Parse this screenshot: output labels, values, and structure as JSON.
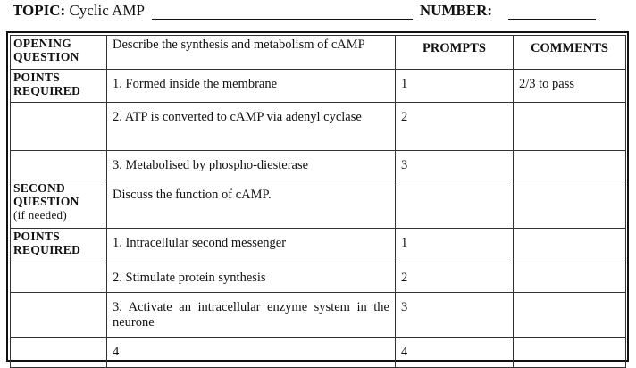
{
  "header": {
    "topic_label": "TOPIC:",
    "topic_value": "Cyclic AMP",
    "number_label": "NUMBER:"
  },
  "table": {
    "col_headers": {
      "prompts": "PROMPTS",
      "comments": "COMMENTS"
    },
    "opening_question": {
      "label_line1": "OPENING",
      "label_line2": "QUESTION",
      "text": "Describe the synthesis and metabolism of cAMP"
    },
    "points_required_1": {
      "label_line1": "POINTS",
      "label_line2": "REQUIRED",
      "comment": "2/3 to pass",
      "rows": [
        {
          "text": "1. Formed inside the membrane",
          "prompt": "1"
        },
        {
          "text": "2.  ATP is converted to cAMP via adenyl cyclase",
          "prompt": "2"
        },
        {
          "text": "3.  Metabolised by phospho-diesterase",
          "prompt": "3"
        }
      ]
    },
    "second_question": {
      "label_line1": "SECOND",
      "label_line2": "QUESTION",
      "label_line3": "(if needed)",
      "text": "Discuss the function of cAMP."
    },
    "points_required_2": {
      "label_line1": "POINTS",
      "label_line2": "REQUIRED",
      "rows": [
        {
          "text": "1.  Intracellular second messenger",
          "prompt": "1"
        },
        {
          "text": "2. Stimulate protein synthesis",
          "prompt": "2"
        },
        {
          "text": "3.  Activate an intracellular enzyme system in the neurone",
          "prompt": "3"
        },
        {
          "text": "4",
          "prompt": "4"
        }
      ]
    }
  }
}
